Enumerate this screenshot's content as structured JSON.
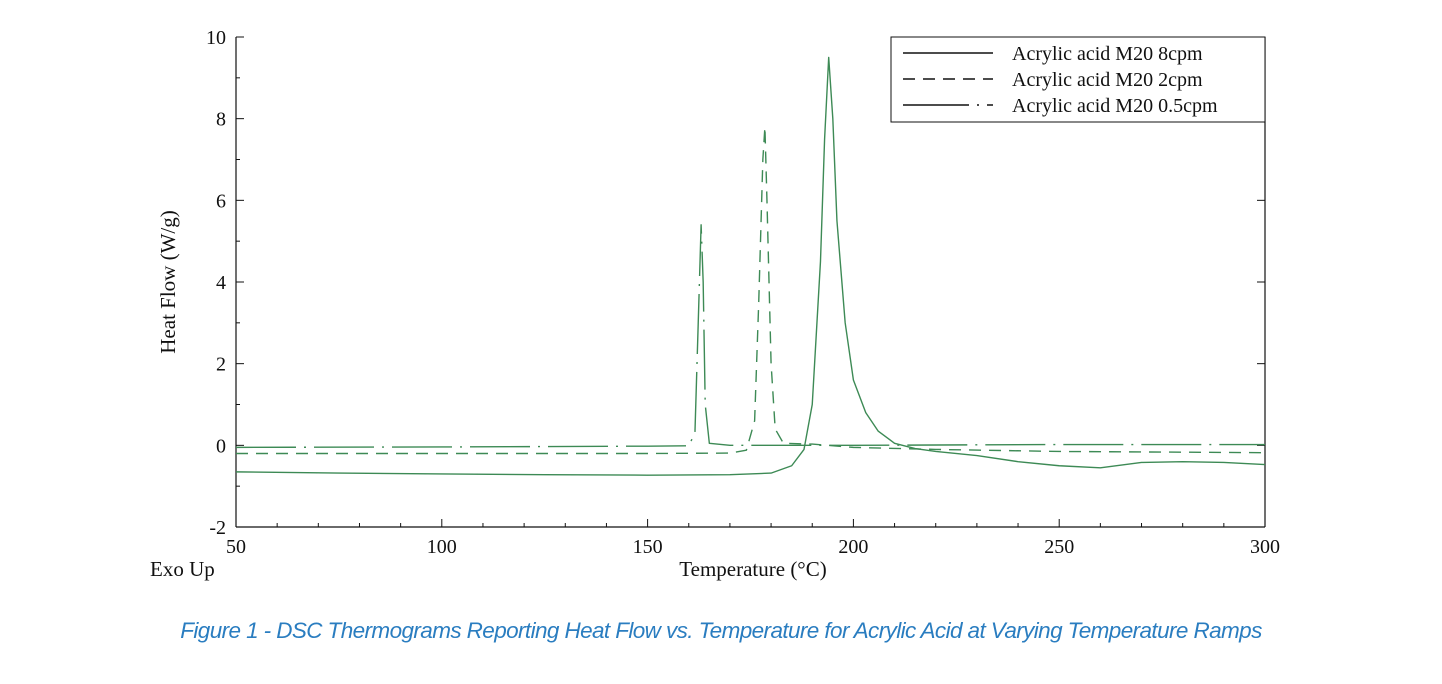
{
  "chart_data": {
    "type": "line",
    "xlabel": "Temperature (°C)",
    "ylabel": "Heat Flow (W/g)",
    "corner_label": "Exo Up",
    "xlim": [
      50,
      300
    ],
    "ylim": [
      -2,
      10
    ],
    "xticks": [
      50,
      100,
      150,
      200,
      250,
      300
    ],
    "yticks": [
      -2,
      0,
      2,
      4,
      6,
      8,
      10
    ],
    "grid": false,
    "legend_position": "top-right",
    "line_color": "#3d8a55",
    "series": [
      {
        "name": "Acrylic acid M20 8cpm",
        "dash": "solid",
        "x": [
          50,
          75,
          100,
          125,
          150,
          170,
          180,
          185,
          188,
          190,
          192,
          193,
          194,
          195,
          196,
          198,
          200,
          203,
          206,
          210,
          215,
          220,
          230,
          240,
          250,
          260,
          270,
          280,
          290,
          300
        ],
        "y": [
          -0.65,
          -0.68,
          -0.7,
          -0.72,
          -0.73,
          -0.72,
          -0.68,
          -0.5,
          -0.1,
          1.0,
          4.5,
          7.5,
          9.5,
          8.0,
          5.5,
          3.0,
          1.6,
          0.8,
          0.35,
          0.05,
          -0.08,
          -0.15,
          -0.25,
          -0.4,
          -0.5,
          -0.55,
          -0.42,
          -0.4,
          -0.42,
          -0.47
        ]
      },
      {
        "name": "Acrylic acid M20 2cpm",
        "dash": "dashed",
        "x": [
          50,
          100,
          150,
          170,
          174,
          176,
          177,
          178,
          178.5,
          179,
          180,
          181,
          183,
          190,
          200,
          220,
          250,
          300
        ],
        "y": [
          -0.2,
          -0.2,
          -0.2,
          -0.19,
          -0.12,
          0.6,
          3.5,
          7.0,
          7.8,
          6.0,
          2.0,
          0.4,
          0.05,
          0.03,
          -0.05,
          -0.1,
          -0.15,
          -0.18
        ]
      },
      {
        "name": "Acrylic acid M20 0.5cpm",
        "dash": "dash-dot",
        "x": [
          50,
          100,
          150,
          160,
          161.5,
          162.3,
          163,
          163.5,
          164,
          165,
          170,
          200,
          250,
          300
        ],
        "y": [
          -0.05,
          -0.04,
          -0.02,
          -0.01,
          0.3,
          3.0,
          5.4,
          4.0,
          1.0,
          0.05,
          0.0,
          0.0,
          0.02,
          0.02
        ]
      }
    ]
  },
  "caption": "Figure 1 - DSC Thermograms Reporting Heat Flow vs. Temperature for Acrylic Acid at Varying Temperature Ramps"
}
